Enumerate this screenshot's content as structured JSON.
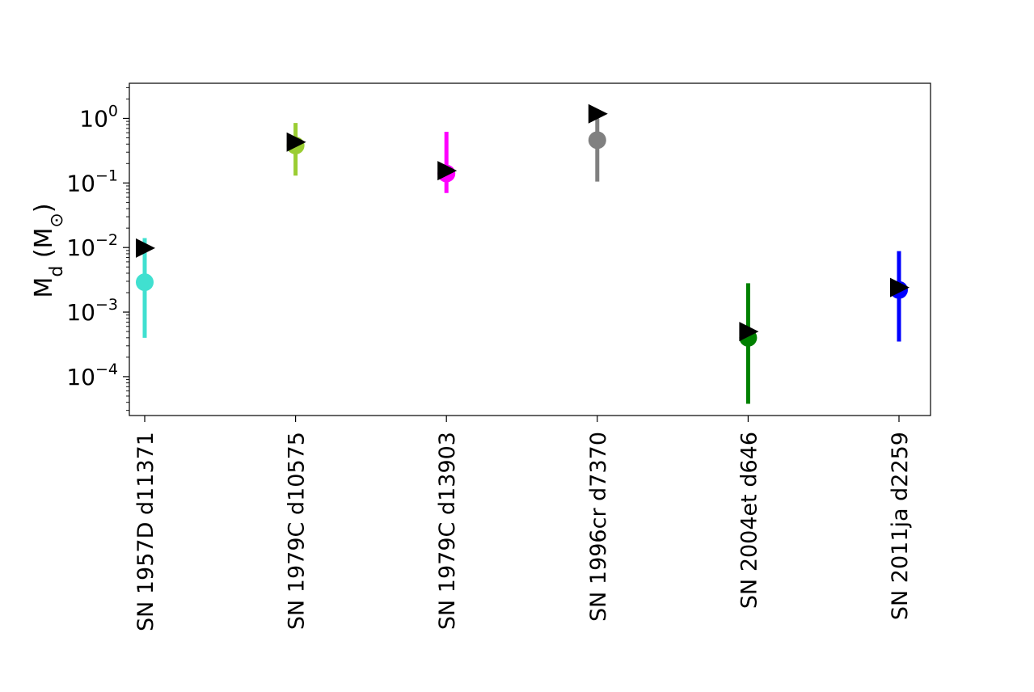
{
  "chart_data": {
    "type": "scatter",
    "ylabel": "M_d (M_⊙)",
    "yscale": "log",
    "ylim": [
      2.5e-05,
      3.5
    ],
    "yticks": [
      {
        "value": 0.0001,
        "base": "10",
        "exp": "−4"
      },
      {
        "value": 0.001,
        "base": "10",
        "exp": "−3"
      },
      {
        "value": 0.01,
        "base": "10",
        "exp": "−2"
      },
      {
        "value": 0.1,
        "base": "10",
        "exp": "−1"
      },
      {
        "value": 1,
        "base": "10",
        "exp": "0"
      }
    ],
    "categories": [
      "SN 1957D d11371",
      "SN 1979C d10575",
      "SN 1979C d13903",
      "SN 1996cr d7370",
      "SN 2004et d646",
      "SN 2011ja d2259"
    ],
    "series": [
      {
        "marker": "circle",
        "values": [
          0.0029,
          0.38,
          0.14,
          0.46,
          0.0004,
          0.0022
        ],
        "error_low": [
          0.0004,
          0.13,
          0.07,
          0.105,
          3.8e-05,
          0.00035
        ],
        "error_high": [
          0.014,
          0.85,
          0.62,
          1.0,
          0.0028,
          0.0088
        ],
        "colors": [
          "#40e0d0",
          "#9acd32",
          "#ff00ff",
          "#808080",
          "#008000",
          "#0000ff"
        ]
      },
      {
        "marker": "triangle-right",
        "values": [
          0.0098,
          0.43,
          0.155,
          1.18,
          0.0005,
          0.0024
        ],
        "color": "#000000"
      }
    ],
    "grid": false
  }
}
